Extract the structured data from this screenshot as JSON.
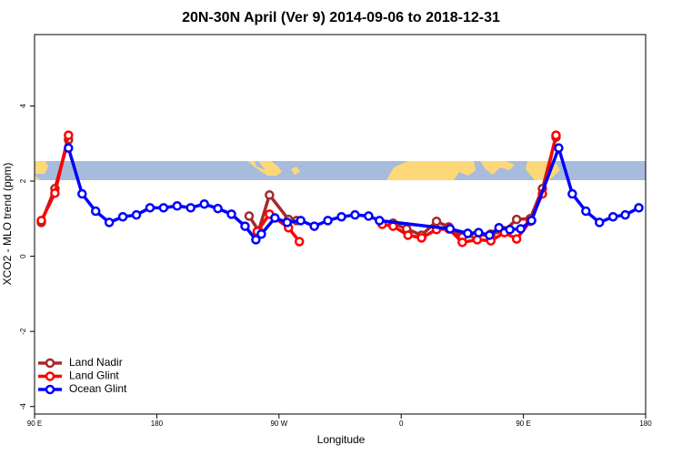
{
  "chart_data": {
    "type": "line",
    "title": "20N-30N April (Ver 9)   2014-09-06 to 2018-12-31",
    "x_label": "Longitude",
    "y_label": "XCO2 - MLO trend (ppm)",
    "xlim": [
      90,
      540
    ],
    "ylim": [
      -4.2,
      5.9
    ],
    "xticks": [
      {
        "value": 90,
        "label": "90 E"
      },
      180,
      {
        "value": 270,
        "label": "90 W"
      },
      {
        "value": 360,
        "label": "0"
      },
      {
        "value": 450,
        "label": "90 E"
      },
      {
        "value": 540,
        "label": "180"
      }
    ],
    "yticks": [
      -4,
      -2,
      0,
      2,
      4
    ],
    "legend": "bottomleft",
    "series": [
      {
        "name": "Land Nadir",
        "color": "#a52a2a",
        "x": [
          95,
          105,
          115,
          null,
          248,
          255,
          263,
          277,
          283,
          null,
          354,
          364,
          375,
          386,
          395,
          405,
          415,
          426,
          436,
          445,
          455,
          464,
          474
        ],
        "values": [
          0.9,
          1.8,
          3.1,
          null,
          1.07,
          0.68,
          1.63,
          0.98,
          0.95,
          null,
          0.88,
          0.73,
          0.56,
          0.93,
          0.78,
          0.51,
          0.54,
          0.59,
          0.68,
          0.98,
          1.0,
          1.8,
          3.17
        ]
      },
      {
        "name": "Land Glint",
        "color": "#ff0000",
        "x": [
          95,
          105,
          115,
          null,
          254,
          263,
          277,
          285,
          null,
          346,
          354,
          365,
          375,
          386,
          395,
          405,
          416,
          426,
          436,
          445,
          455,
          464,
          474
        ],
        "values": [
          0.95,
          1.68,
          3.22,
          null,
          0.66,
          1.12,
          0.76,
          0.39,
          null,
          0.85,
          0.8,
          0.56,
          0.49,
          0.71,
          0.73,
          0.37,
          0.44,
          0.41,
          0.63,
          0.46,
          0.93,
          1.66,
          3.22
        ]
      },
      {
        "name": "Ocean Glint",
        "color": "#0000ff",
        "x": [
          115,
          125,
          135,
          145,
          155,
          165,
          175,
          185,
          195,
          205,
          215,
          225,
          235,
          245,
          253,
          257,
          267,
          276,
          286,
          296,
          306,
          316,
          326,
          336,
          344,
          396,
          409,
          417,
          425,
          432,
          440,
          448,
          456,
          476,
          486,
          496,
          506,
          516,
          525,
          535
        ],
        "values": [
          2.88,
          1.66,
          1.2,
          0.9,
          1.05,
          1.1,
          1.29,
          1.29,
          1.34,
          1.29,
          1.39,
          1.27,
          1.12,
          0.8,
          0.44,
          0.59,
          1.02,
          0.9,
          0.95,
          0.8,
          0.95,
          1.05,
          1.1,
          1.07,
          0.95,
          0.73,
          0.61,
          0.63,
          0.56,
          0.76,
          0.71,
          0.73,
          0.95,
          2.88,
          1.66,
          1.2,
          0.9,
          1.05,
          1.1,
          1.29
        ]
      }
    ]
  }
}
